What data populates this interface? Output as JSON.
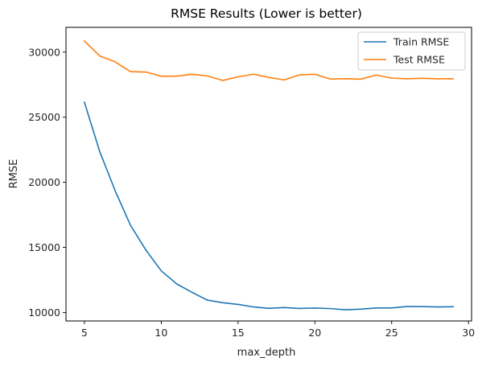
{
  "chart_data": {
    "type": "line",
    "title": "RMSE Results (Lower is better)",
    "xlabel": "max_depth",
    "ylabel": "RMSE",
    "xlim": [
      3.8,
      30.2
    ],
    "ylim": [
      9350,
      31900
    ],
    "xticks": [
      5,
      10,
      15,
      20,
      25,
      30
    ],
    "yticks": [
      10000,
      15000,
      20000,
      25000,
      30000
    ],
    "grid": false,
    "legend_position": "top-right",
    "x": [
      5,
      6,
      7,
      8,
      9,
      10,
      11,
      12,
      13,
      14,
      15,
      16,
      17,
      18,
      19,
      20,
      21,
      22,
      23,
      24,
      25,
      26,
      27,
      28,
      29
    ],
    "series": [
      {
        "name": "Train RMSE",
        "color": "#1f77b4",
        "values": [
          26150,
          22350,
          19350,
          16700,
          14800,
          13200,
          12200,
          11550,
          10950,
          10750,
          10620,
          10430,
          10320,
          10380,
          10310,
          10340,
          10300,
          10210,
          10260,
          10350,
          10350,
          10460,
          10450,
          10430,
          10440
        ]
      },
      {
        "name": "Test RMSE",
        "color": "#ff7f0e",
        "values": [
          30850,
          29700,
          29250,
          28500,
          28470,
          28150,
          28150,
          28300,
          28170,
          27820,
          28100,
          28300,
          28060,
          27860,
          28250,
          28300,
          27930,
          27960,
          27920,
          28240,
          28000,
          27950,
          27990,
          27950,
          27950
        ]
      }
    ]
  }
}
